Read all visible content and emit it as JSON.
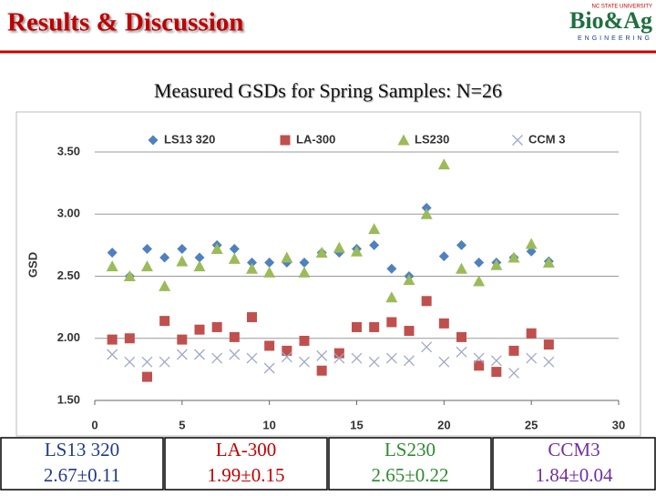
{
  "header": {
    "title": "Results & Discussion",
    "logo_top": "NC STATE UNIVERSITY",
    "logo": "Bio&Ag",
    "logo_sub": "ENGINEERING"
  },
  "chart_data": {
    "type": "scatter",
    "title": "Measured GSDs for Spring Samples: N=26",
    "ylabel": "GSD",
    "x": [
      1,
      2,
      3,
      4,
      5,
      6,
      7,
      8,
      9,
      10,
      11,
      12,
      13,
      14,
      15,
      16,
      17,
      18,
      19,
      20,
      21,
      22,
      23,
      24,
      25,
      26
    ],
    "series": [
      {
        "name": "LS13 320",
        "color": "#4f81bd",
        "marker": "diamond",
        "values": [
          2.69,
          2.5,
          2.72,
          2.65,
          2.72,
          2.65,
          2.75,
          2.72,
          2.61,
          2.61,
          2.61,
          2.61,
          2.69,
          2.69,
          2.72,
          2.75,
          2.56,
          2.5,
          3.05,
          2.66,
          2.75,
          2.61,
          2.61,
          2.65,
          2.7,
          2.62
        ]
      },
      {
        "name": "LA-300",
        "color": "#c0504d",
        "marker": "square",
        "values": [
          1.99,
          2.0,
          1.69,
          2.14,
          1.99,
          2.07,
          2.09,
          2.01,
          2.17,
          1.94,
          1.9,
          1.98,
          1.74,
          1.88,
          2.09,
          2.09,
          2.13,
          2.06,
          2.3,
          2.12,
          2.01,
          1.78,
          1.73,
          1.9,
          2.04,
          1.95
        ]
      },
      {
        "name": "LS230",
        "color": "#9bbb59",
        "marker": "triangle",
        "values": [
          2.58,
          2.5,
          2.58,
          2.42,
          2.62,
          2.58,
          2.72,
          2.64,
          2.56,
          2.53,
          2.65,
          2.53,
          2.69,
          2.73,
          2.7,
          2.88,
          2.33,
          2.47,
          3.0,
          3.4,
          2.56,
          2.46,
          2.59,
          2.65,
          2.76,
          2.61
        ]
      },
      {
        "name": "CCM 3",
        "color": "#9fa8c8",
        "marker": "cross",
        "values": [
          1.87,
          1.81,
          1.81,
          1.81,
          1.87,
          1.87,
          1.84,
          1.87,
          1.84,
          1.76,
          1.85,
          1.81,
          1.86,
          1.84,
          1.84,
          1.81,
          1.84,
          1.82,
          1.93,
          1.81,
          1.89,
          1.84,
          1.82,
          1.72,
          1.84,
          1.81
        ]
      }
    ],
    "xlim": [
      0,
      30
    ],
    "xticks": [
      0,
      5,
      10,
      15,
      20,
      25,
      30
    ],
    "ylim": [
      1.5,
      3.5
    ],
    "yticks": [
      {
        "value": 1.5,
        "label": "1.50"
      },
      {
        "value": 2.0,
        "label": "2.00"
      },
      {
        "value": 2.5,
        "label": "2.50"
      },
      {
        "value": 3.0,
        "label": "3.00"
      },
      {
        "value": 3.5,
        "label": "3.50"
      }
    ],
    "grid": true,
    "legend": "top"
  },
  "table": {
    "cells": [
      {
        "name": "LS13 320",
        "value": "2.67±0.11",
        "color": "#1f3a8a"
      },
      {
        "name": "LA-300",
        "value": "1.99±0.15",
        "color": "#c00000"
      },
      {
        "name": "LS230",
        "value": "2.65±0.22",
        "color": "#2e8b2e"
      },
      {
        "name": "CCM3",
        "value": "1.84±0.04",
        "color": "#7030a0"
      }
    ]
  }
}
